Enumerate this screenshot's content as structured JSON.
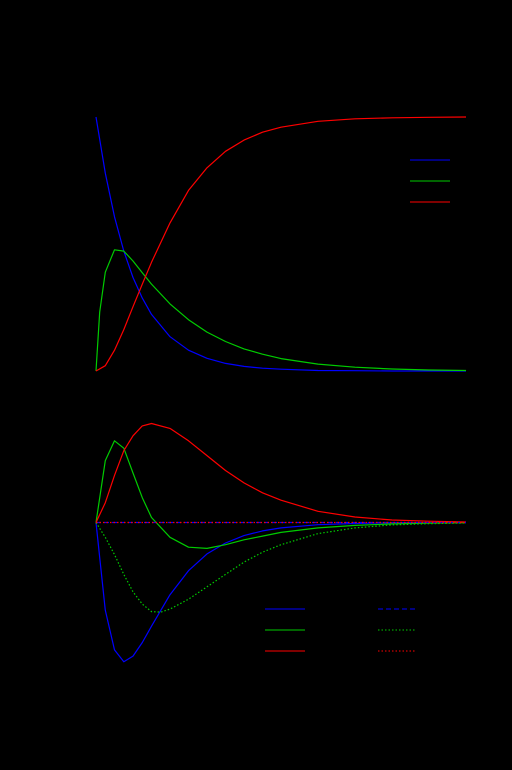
{
  "figure": {
    "background": "#000000"
  },
  "chart_data": [
    {
      "type": "line",
      "title": "",
      "xlabel": "",
      "ylabel": "",
      "xlim": [
        0,
        10
      ],
      "ylim": [
        0,
        1
      ],
      "legend_position": "top-right",
      "series": [
        {
          "color": "#0000ff",
          "style": "solid",
          "x": [
            0,
            0.25,
            0.5,
            0.75,
            1,
            1.25,
            1.5,
            2,
            2.5,
            3,
            3.5,
            4,
            4.5,
            5,
            6,
            7,
            8,
            9,
            10
          ],
          "y": [
            1.0,
            0.779,
            0.607,
            0.472,
            0.368,
            0.287,
            0.223,
            0.135,
            0.082,
            0.05,
            0.03,
            0.018,
            0.011,
            0.007,
            0.002,
            0.001,
            0.0,
            0.0,
            0.0
          ]
        },
        {
          "color": "#00cc00",
          "style": "solid",
          "x": [
            0,
            0.1,
            0.25,
            0.5,
            0.75,
            1,
            1.25,
            1.5,
            2,
            2.5,
            3,
            3.5,
            4,
            4.5,
            5,
            6,
            7,
            8,
            9,
            10
          ],
          "y": [
            0.0,
            0.232,
            0.389,
            0.477,
            0.472,
            0.433,
            0.387,
            0.342,
            0.264,
            0.202,
            0.153,
            0.116,
            0.087,
            0.066,
            0.049,
            0.027,
            0.015,
            0.008,
            0.004,
            0.002
          ]
        },
        {
          "color": "#ff0000",
          "style": "solid",
          "x": [
            0,
            0.25,
            0.5,
            0.75,
            1,
            1.25,
            1.5,
            2,
            2.5,
            3,
            3.5,
            4,
            4.5,
            5,
            6,
            7,
            8,
            9,
            10
          ],
          "y": [
            0.0,
            0.021,
            0.082,
            0.163,
            0.253,
            0.342,
            0.428,
            0.583,
            0.711,
            0.8,
            0.865,
            0.909,
            0.94,
            0.96,
            0.983,
            0.993,
            0.997,
            0.999,
            1.0
          ]
        }
      ]
    },
    {
      "type": "line",
      "title": "",
      "xlabel": "",
      "ylabel": "",
      "xlim": [
        0,
        10
      ],
      "ylim": [
        -0.58,
        0.41
      ],
      "legend_position": "bottom-right",
      "series": [
        {
          "color": "#0000ff",
          "style": "solid",
          "x": [
            0,
            0.25,
            0.5,
            0.75,
            1,
            1.25,
            1.5,
            2,
            2.5,
            3,
            3.5,
            4,
            4.5,
            5,
            6,
            7,
            8,
            9,
            10
          ],
          "y": [
            0.0,
            -0.355,
            -0.515,
            -0.563,
            -0.54,
            -0.485,
            -0.419,
            -0.292,
            -0.195,
            -0.127,
            -0.083,
            -0.053,
            -0.034,
            -0.022,
            -0.009,
            -0.004,
            -0.001,
            -0.001,
            0.0
          ]
        },
        {
          "color": "#00cc00",
          "style": "solid",
          "x": [
            0,
            0.25,
            0.5,
            0.75,
            1,
            1.25,
            1.5,
            2,
            2.5,
            3,
            3.5,
            4,
            4.5,
            5,
            6,
            7,
            8,
            9,
            10
          ],
          "y": [
            0.0,
            0.25,
            0.33,
            0.3,
            0.2,
            0.1,
            0.02,
            -0.06,
            -0.1,
            -0.105,
            -0.09,
            -0.07,
            -0.055,
            -0.04,
            -0.022,
            -0.012,
            -0.006,
            -0.003,
            -0.001
          ]
        },
        {
          "color": "#ff0000",
          "style": "solid",
          "x": [
            0,
            0.25,
            0.5,
            0.75,
            1,
            1.25,
            1.5,
            2,
            2.5,
            3,
            3.5,
            4,
            4.5,
            5,
            6,
            7,
            8,
            9,
            10
          ],
          "y": [
            0.0,
            0.08,
            0.19,
            0.29,
            0.35,
            0.39,
            0.4,
            0.38,
            0.33,
            0.27,
            0.21,
            0.16,
            0.12,
            0.09,
            0.045,
            0.022,
            0.01,
            0.005,
            0.002
          ]
        },
        {
          "color": "#0000ff",
          "style": "dashed",
          "x": [
            0,
            10
          ],
          "y": [
            0.0,
            0.0
          ]
        },
        {
          "color": "#00cc00",
          "style": "dotted",
          "x": [
            0,
            0.25,
            0.5,
            0.75,
            1,
            1.25,
            1.5,
            1.75,
            2,
            2.5,
            3,
            3.5,
            4,
            4.5,
            5,
            6,
            7,
            8,
            9,
            10
          ],
          "y": [
            0.0,
            -0.06,
            -0.13,
            -0.21,
            -0.28,
            -0.33,
            -0.36,
            -0.362,
            -0.35,
            -0.31,
            -0.26,
            -0.21,
            -0.16,
            -0.12,
            -0.09,
            -0.045,
            -0.022,
            -0.01,
            -0.005,
            -0.002
          ]
        },
        {
          "color": "#ff0000",
          "style": "dotted",
          "x": [
            0,
            10
          ],
          "y": [
            0.0,
            0.0
          ]
        }
      ]
    }
  ]
}
